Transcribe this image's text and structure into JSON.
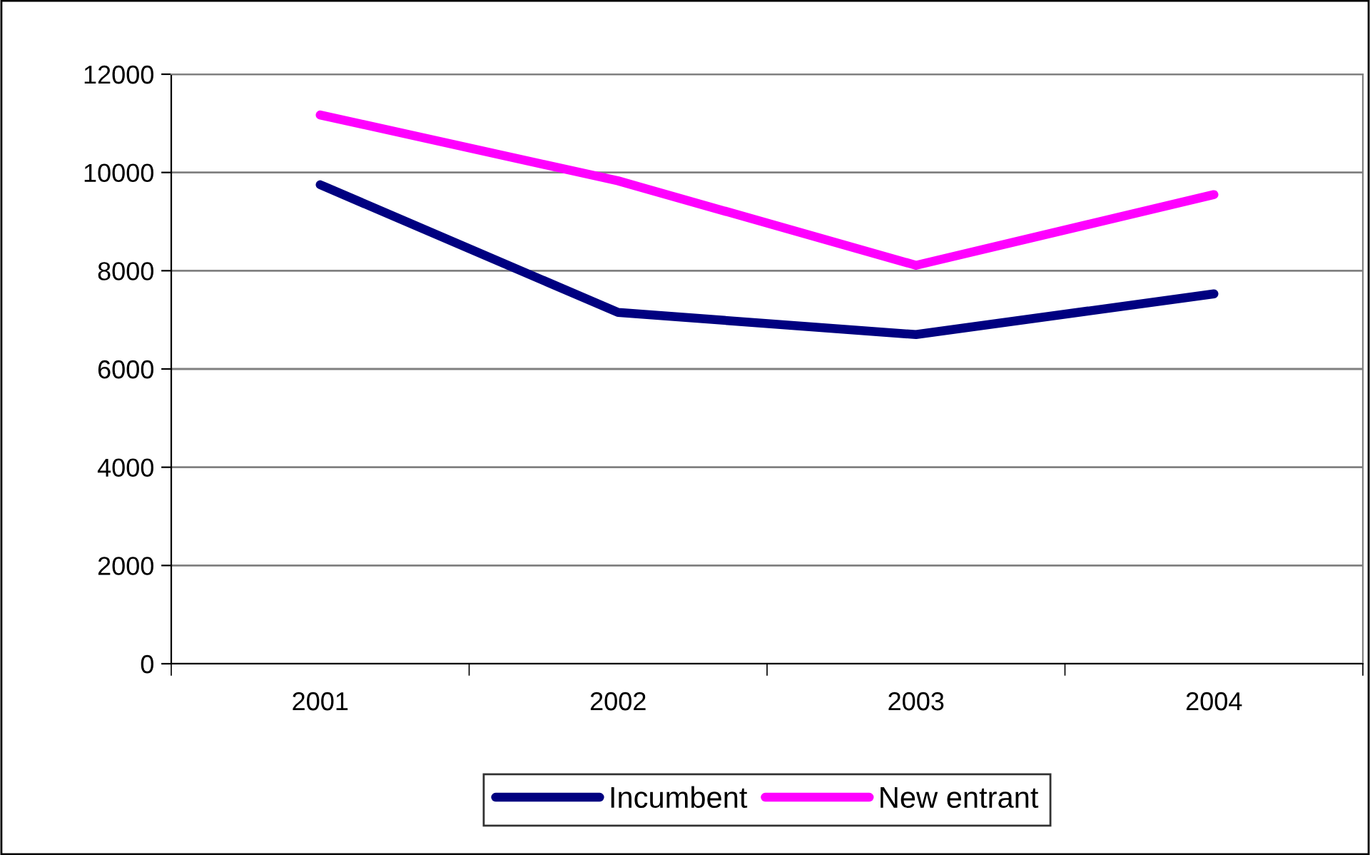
{
  "chart_data": {
    "type": "line",
    "categories": [
      "2001",
      "2002",
      "2003",
      "2004"
    ],
    "series": [
      {
        "name": "Incumbent",
        "color": "#000080",
        "values": [
          9750,
          7150,
          6700,
          7530
        ]
      },
      {
        "name": "New entrant",
        "color": "#ff00ff",
        "values": [
          11170,
          9830,
          8110,
          9550
        ]
      }
    ],
    "ylim": [
      0,
      12000
    ],
    "yticks": [
      0,
      2000,
      4000,
      6000,
      8000,
      10000,
      12000
    ],
    "grid": "y",
    "legend": "bottom"
  }
}
